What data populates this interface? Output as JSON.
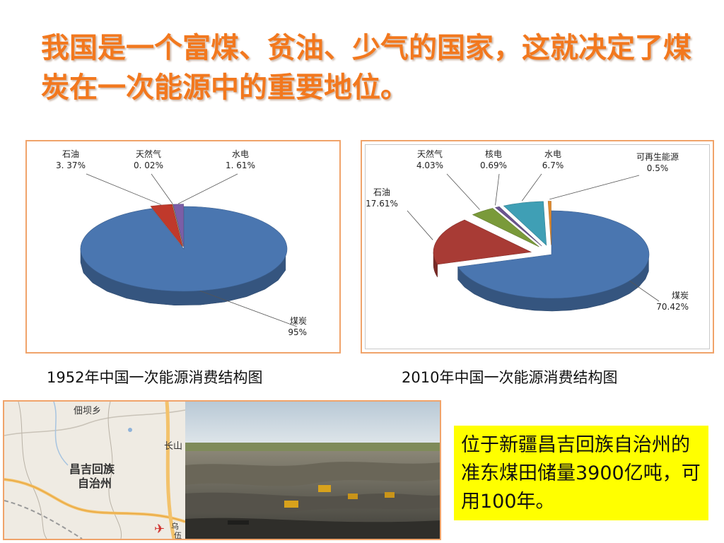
{
  "slide": {
    "title": "我国是一个富煤、贫油、少气的国家，这就决定了煤炭在一次能源中的重要地位。",
    "caption_1952": "1952年中国一次能源消费结构图",
    "caption_2010": "2010年中国一次能源消费结构图",
    "note": "位于新疆昌吉回族自治州的准东煤田储量3900亿吨，可用100年。"
  },
  "map": {
    "labels": [
      "佃坝乡",
      "长山",
      "昌吉回族",
      "自治州",
      "乌",
      "伍"
    ],
    "airport_icon": "airplane-icon"
  },
  "chart_data": [
    {
      "type": "pie",
      "title": "1952年中国一次能源消费结构图",
      "slices": [
        {
          "name": "煤炭",
          "value": 95,
          "label": "95%",
          "color": "#4a76b0"
        },
        {
          "name": "石油",
          "value": 3.37,
          "label": "3. 37%",
          "color": "#c0392b"
        },
        {
          "name": "天然气",
          "value": 0.02,
          "label": "0. 02%",
          "color": "#7aa13a"
        },
        {
          "name": "水电",
          "value": 1.61,
          "label": "1. 61%",
          "color": "#7b5ea7"
        }
      ]
    },
    {
      "type": "pie",
      "title": "2010年中国一次能源消费结构图",
      "slices": [
        {
          "name": "煤炭",
          "value": 70.42,
          "label": "70.42%",
          "color": "#4a76b0"
        },
        {
          "name": "石油",
          "value": 17.61,
          "label": "17.61%",
          "color": "#a83b35"
        },
        {
          "name": "天然气",
          "value": 4.03,
          "label": "4.03%",
          "color": "#7a9a3a"
        },
        {
          "name": "核电",
          "value": 0.69,
          "label": "0.69%",
          "color": "#6b5591"
        },
        {
          "name": "水电",
          "value": 6.7,
          "label": "6.7%",
          "color": "#3f9fb5"
        },
        {
          "name": "可再生能源",
          "value": 0.5,
          "label": "0.5%",
          "color": "#e08a2e"
        }
      ]
    }
  ]
}
